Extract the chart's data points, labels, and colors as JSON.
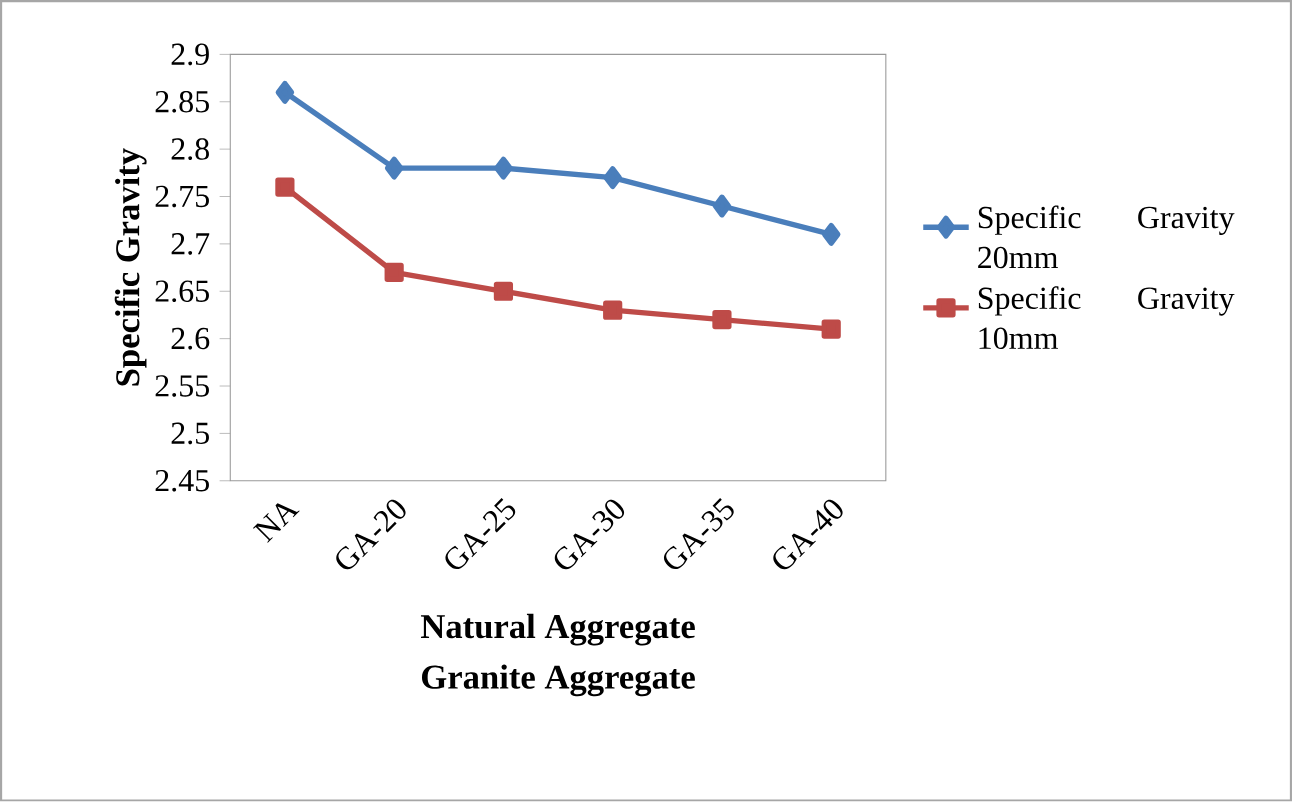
{
  "chart_data": {
    "type": "line",
    "xlabel": "Natural Aggregate Granite Aggregate",
    "ylabel": "Specific Gravity",
    "categories": [
      "NA",
      "GA-20",
      "GA-25",
      "GA-30",
      "GA-35",
      "GA-40"
    ],
    "series": [
      {
        "name": "Specific Gravity 20mm",
        "color": "#4a7ebb",
        "marker": "diamond",
        "values": [
          2.86,
          2.78,
          2.78,
          2.77,
          2.74,
          2.71
        ]
      },
      {
        "name": "Specific Gravity 10mm",
        "color": "#be4b48",
        "marker": "square",
        "values": [
          2.76,
          2.67,
          2.65,
          2.63,
          2.62,
          2.61
        ]
      }
    ],
    "ylim": [
      2.45,
      2.9
    ],
    "yticks": [
      2.45,
      2.5,
      2.55,
      2.6,
      2.65,
      2.7,
      2.75,
      2.8,
      2.85,
      2.9
    ],
    "grid": false,
    "legend": "right"
  }
}
